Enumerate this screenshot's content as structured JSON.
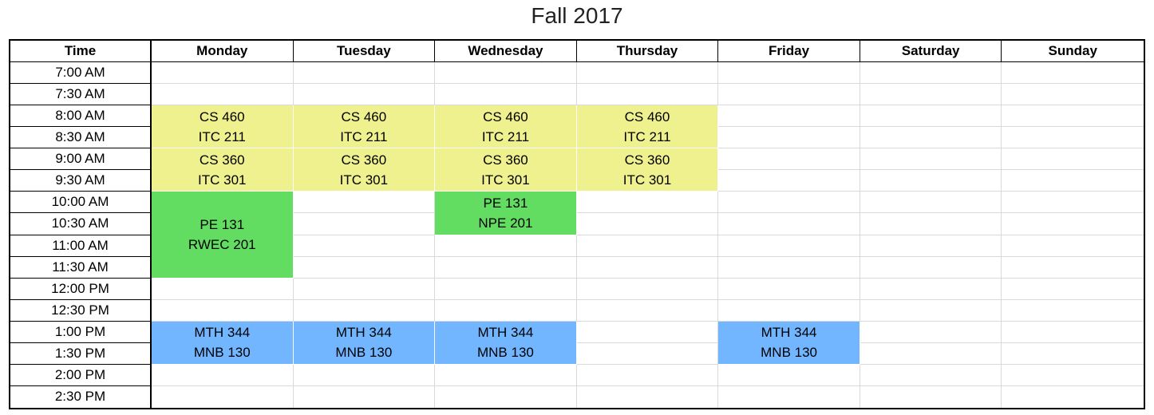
{
  "title": "Fall 2017",
  "headers": [
    "Time",
    "Monday",
    "Tuesday",
    "Wednesday",
    "Thursday",
    "Friday",
    "Saturday",
    "Sunday"
  ],
  "times": [
    "7:00 AM",
    "7:30 AM",
    "8:00 AM",
    "8:30 AM",
    "9:00 AM",
    "9:30 AM",
    "10:00 AM",
    "10:30 AM",
    "11:00 AM",
    "11:30 AM",
    "12:00 PM",
    "12:30 PM",
    "1:00 PM",
    "1:30 PM",
    "2:00 PM",
    "2:30 PM"
  ],
  "colors": {
    "yellow": "#eff18f",
    "green": "#62dd62",
    "blue": "#72b6ff"
  },
  "blocks": [
    {
      "day": "Monday",
      "start": "8:00 AM",
      "end": "9:00 AM",
      "course": "CS 460",
      "room": "ITC 211",
      "color": "yellow"
    },
    {
      "day": "Tuesday",
      "start": "8:00 AM",
      "end": "9:00 AM",
      "course": "CS 460",
      "room": "ITC 211",
      "color": "yellow"
    },
    {
      "day": "Wednesday",
      "start": "8:00 AM",
      "end": "9:00 AM",
      "course": "CS 460",
      "room": "ITC 211",
      "color": "yellow"
    },
    {
      "day": "Thursday",
      "start": "8:00 AM",
      "end": "9:00 AM",
      "course": "CS 460",
      "room": "ITC 211",
      "color": "yellow"
    },
    {
      "day": "Monday",
      "start": "9:00 AM",
      "end": "10:00 AM",
      "course": "CS 360",
      "room": "ITC 301",
      "color": "yellow"
    },
    {
      "day": "Tuesday",
      "start": "9:00 AM",
      "end": "10:00 AM",
      "course": "CS 360",
      "room": "ITC 301",
      "color": "yellow"
    },
    {
      "day": "Wednesday",
      "start": "9:00 AM",
      "end": "10:00 AM",
      "course": "CS 360",
      "room": "ITC 301",
      "color": "yellow"
    },
    {
      "day": "Thursday",
      "start": "9:00 AM",
      "end": "10:00 AM",
      "course": "CS 360",
      "room": "ITC 301",
      "color": "yellow"
    },
    {
      "day": "Monday",
      "start": "10:00 AM",
      "end": "12:00 PM",
      "course": "PE 131",
      "room": "RWEC 201",
      "color": "green"
    },
    {
      "day": "Wednesday",
      "start": "10:00 AM",
      "end": "11:00 AM",
      "course": "PE 131",
      "room": "NPE 201",
      "color": "green"
    },
    {
      "day": "Monday",
      "start": "1:00 PM",
      "end": "2:00 PM",
      "course": "MTH 344",
      "room": "MNB 130",
      "color": "blue"
    },
    {
      "day": "Tuesday",
      "start": "1:00 PM",
      "end": "2:00 PM",
      "course": "MTH 344",
      "room": "MNB 130",
      "color": "blue"
    },
    {
      "day": "Wednesday",
      "start": "1:00 PM",
      "end": "2:00 PM",
      "course": "MTH 344",
      "room": "MNB 130",
      "color": "blue"
    },
    {
      "day": "Friday",
      "start": "1:00 PM",
      "end": "2:00 PM",
      "course": "MTH 344",
      "room": "MNB 130",
      "color": "blue"
    }
  ]
}
